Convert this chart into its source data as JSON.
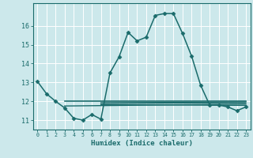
{
  "xlabel": "Humidex (Indice chaleur)",
  "background_color": "#cce8eb",
  "grid_color": "#ffffff",
  "line_color": "#1a6b6b",
  "xlim": [
    -0.5,
    23.5
  ],
  "ylim": [
    10.5,
    17.2
  ],
  "yticks": [
    11,
    12,
    13,
    14,
    15,
    16
  ],
  "xticks": [
    0,
    1,
    2,
    3,
    4,
    5,
    6,
    7,
    8,
    9,
    10,
    11,
    12,
    13,
    14,
    15,
    16,
    17,
    18,
    19,
    20,
    21,
    22,
    23
  ],
  "main_x": [
    0,
    1,
    2,
    3,
    4,
    5,
    6,
    7,
    8,
    9,
    10,
    11,
    12,
    13,
    14,
    15,
    16,
    17,
    18,
    19,
    20,
    21,
    22,
    23
  ],
  "main_y": [
    13.05,
    12.4,
    12.0,
    11.65,
    11.1,
    11.0,
    11.3,
    11.05,
    13.5,
    14.35,
    15.65,
    15.2,
    15.4,
    16.55,
    16.65,
    16.65,
    15.6,
    14.4,
    12.85,
    11.8,
    11.8,
    11.7,
    11.5,
    11.7
  ],
  "flat_lines": [
    {
      "x0": 3,
      "x1": 23,
      "y0": 12.0,
      "y1": 12.0,
      "lw": 1.2
    },
    {
      "x0": 3,
      "x1": 23,
      "y0": 11.75,
      "y1": 11.85,
      "lw": 1.0
    },
    {
      "x0": 7,
      "x1": 23,
      "y0": 11.82,
      "y1": 11.78,
      "lw": 0.9
    },
    {
      "x0": 7,
      "x1": 23,
      "y0": 11.88,
      "y1": 11.92,
      "lw": 0.9
    },
    {
      "x0": 7,
      "x1": 23,
      "y0": 11.93,
      "y1": 11.96,
      "lw": 0.8
    }
  ],
  "marker": "D",
  "markersize": 2.5,
  "linewidth": 1.1
}
